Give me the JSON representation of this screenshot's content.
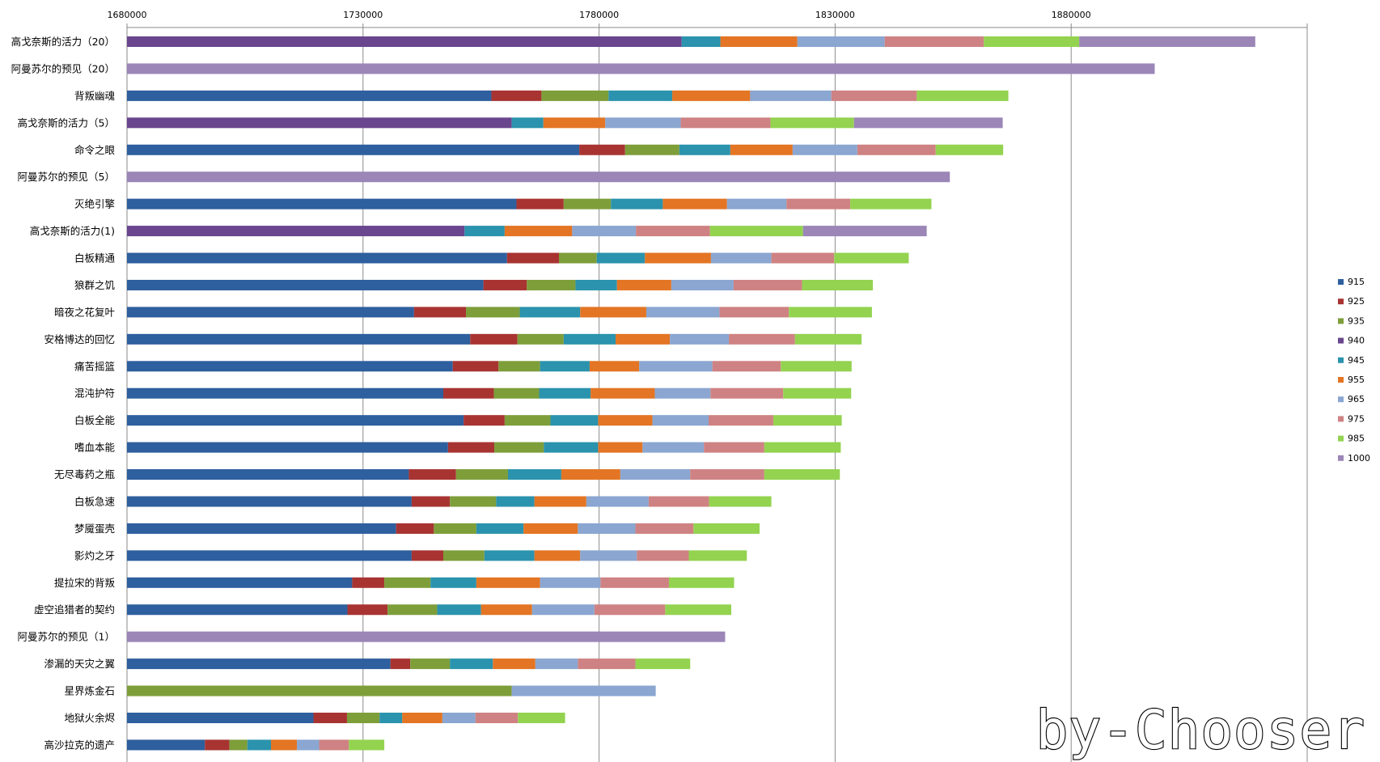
{
  "chart_data": {
    "type": "bar",
    "orientation": "horizontal",
    "stacked": true,
    "xlim": [
      1680000,
      1930000
    ],
    "x_ticks": [
      "1680000",
      "1730000",
      "1780000",
      "1830000",
      "1880000"
    ],
    "grid": "vertical",
    "legend_position": "right",
    "levels": [
      "915",
      "925",
      "935",
      "940",
      "945",
      "955",
      "965",
      "975",
      "985",
      "1000"
    ],
    "colors": {
      "915": "#2e5f9e",
      "925": "#a83432",
      "935": "#7e9e3a",
      "940": "#69468e",
      "945": "#2b93ad",
      "955": "#e37524",
      "965": "#8aa6d1",
      "975": "#cf8283",
      "985": "#93d350",
      "1000": "#9b86b7"
    },
    "categories": [
      {
        "label": "高戈奈斯的活力（20）",
        "segments": [
          [
            "940",
            1797500
          ],
          [
            "945",
            1805700
          ],
          [
            "955",
            1822000
          ],
          [
            "965",
            1840500
          ],
          [
            "975",
            1861500
          ],
          [
            "985",
            1881700
          ],
          [
            "1000",
            1919000
          ]
        ]
      },
      {
        "label": "阿曼苏尔的预见（20）",
        "segments": [
          [
            "1000",
            1897700
          ]
        ]
      },
      {
        "label": "背叛幽魂",
        "segments": [
          [
            "915",
            1757200
          ],
          [
            "925",
            1767800
          ],
          [
            "935",
            1782000
          ],
          [
            "945",
            1795500
          ],
          [
            "955",
            1812000
          ],
          [
            "965",
            1829200
          ],
          [
            "975",
            1847300
          ],
          [
            "985",
            1866700
          ]
        ]
      },
      {
        "label": "高戈奈斯的活力（5）",
        "segments": [
          [
            "940",
            1761500
          ],
          [
            "945",
            1768200
          ],
          [
            "955",
            1781300
          ],
          [
            "965",
            1797300
          ],
          [
            "975",
            1816300
          ],
          [
            "985",
            1834000
          ],
          [
            "1000",
            1865500
          ]
        ]
      },
      {
        "label": "命令之眼",
        "segments": [
          [
            "915",
            1775800
          ],
          [
            "925",
            1785500
          ],
          [
            "935",
            1797000
          ],
          [
            "945",
            1807800
          ],
          [
            "955",
            1821000
          ],
          [
            "965",
            1834700
          ],
          [
            "975",
            1851300
          ],
          [
            "985",
            1865600
          ]
        ]
      },
      {
        "label": "阿曼苏尔的预见（5）",
        "segments": [
          [
            "1000",
            1854300
          ]
        ]
      },
      {
        "label": "灭绝引擎",
        "segments": [
          [
            "915",
            1762500
          ],
          [
            "925",
            1772500
          ],
          [
            "935",
            1782500
          ],
          [
            "945",
            1793500
          ],
          [
            "955",
            1807100
          ],
          [
            "965",
            1819700
          ],
          [
            "975",
            1833200
          ],
          [
            "985",
            1850400
          ]
        ]
      },
      {
        "label": "高戈奈斯的活力(1)",
        "segments": [
          [
            "940",
            1751500
          ],
          [
            "945",
            1760000
          ],
          [
            "955",
            1774300
          ],
          [
            "965",
            1787800
          ],
          [
            "975",
            1803500
          ],
          [
            "985",
            1823200
          ],
          [
            "1000",
            1849400
          ]
        ]
      },
      {
        "label": "白板精通",
        "segments": [
          [
            "915",
            1760500
          ],
          [
            "925",
            1771500
          ],
          [
            "935",
            1779500
          ],
          [
            "945",
            1789700
          ],
          [
            "955",
            1803700
          ],
          [
            "965",
            1816500
          ],
          [
            "975",
            1829800
          ],
          [
            "985",
            1845600
          ]
        ]
      },
      {
        "label": "狼群之饥",
        "segments": [
          [
            "915",
            1755500
          ],
          [
            "925",
            1764700
          ],
          [
            "935",
            1775000
          ],
          [
            "945",
            1783800
          ],
          [
            "955",
            1795300
          ],
          [
            "965",
            1808500
          ],
          [
            "975",
            1823000
          ],
          [
            "985",
            1838000
          ]
        ]
      },
      {
        "label": "暗夜之花复叶",
        "segments": [
          [
            "915",
            1740800
          ],
          [
            "925",
            1751800
          ],
          [
            "935",
            1763200
          ],
          [
            "945",
            1776000
          ],
          [
            "955",
            1790000
          ],
          [
            "965",
            1805500
          ],
          [
            "975",
            1820200
          ],
          [
            "985",
            1837800
          ]
        ]
      },
      {
        "label": "安格博达的回忆",
        "segments": [
          [
            "915",
            1752700
          ],
          [
            "925",
            1762700
          ],
          [
            "935",
            1772500
          ],
          [
            "945",
            1783500
          ],
          [
            "955",
            1795000
          ],
          [
            "965",
            1807500
          ],
          [
            "975",
            1821500
          ],
          [
            "985",
            1835600
          ]
        ]
      },
      {
        "label": "痛苦摇篮",
        "segments": [
          [
            "915",
            1749000
          ],
          [
            "925",
            1758700
          ],
          [
            "935",
            1767500
          ],
          [
            "945",
            1778000
          ],
          [
            "955",
            1788500
          ],
          [
            "965",
            1804000
          ],
          [
            "975",
            1818500
          ],
          [
            "985",
            1833500
          ]
        ]
      },
      {
        "label": "混沌护符",
        "segments": [
          [
            "915",
            1747000
          ],
          [
            "925",
            1757700
          ],
          [
            "935",
            1767300
          ],
          [
            "945",
            1778200
          ],
          [
            "955",
            1791800
          ],
          [
            "965",
            1803600
          ],
          [
            "975",
            1819000
          ],
          [
            "985",
            1833400
          ]
        ]
      },
      {
        "label": "白板全能",
        "segments": [
          [
            "915",
            1751300
          ],
          [
            "925",
            1760000
          ],
          [
            "935",
            1769700
          ],
          [
            "945",
            1779800
          ],
          [
            "955",
            1791300
          ],
          [
            "965",
            1803200
          ],
          [
            "975",
            1816900
          ],
          [
            "985",
            1831400
          ]
        ]
      },
      {
        "label": "嗜血本能",
        "segments": [
          [
            "915",
            1748000
          ],
          [
            "925",
            1757800
          ],
          [
            "935",
            1768300
          ],
          [
            "945",
            1779800
          ],
          [
            "955",
            1789200
          ],
          [
            "965",
            1802200
          ],
          [
            "975",
            1815000
          ],
          [
            "985",
            1831200
          ]
        ]
      },
      {
        "label": "无尽毒药之瓶",
        "segments": [
          [
            "915",
            1739700
          ],
          [
            "925",
            1749700
          ],
          [
            "935",
            1760700
          ],
          [
            "945",
            1772000
          ],
          [
            "955",
            1784500
          ],
          [
            "965",
            1799300
          ],
          [
            "975",
            1815000
          ],
          [
            "985",
            1831000
          ]
        ]
      },
      {
        "label": "白板急速",
        "segments": [
          [
            "915",
            1740300
          ],
          [
            "925",
            1748400
          ],
          [
            "935",
            1758200
          ],
          [
            "945",
            1766300
          ],
          [
            "955",
            1777300
          ],
          [
            "965",
            1790500
          ],
          [
            "975",
            1803300
          ],
          [
            "985",
            1816500
          ]
        ]
      },
      {
        "label": "梦魇蛋壳",
        "segments": [
          [
            "915",
            1737000
          ],
          [
            "925",
            1745000
          ],
          [
            "935",
            1754000
          ],
          [
            "945",
            1764000
          ],
          [
            "955",
            1775500
          ],
          [
            "965",
            1787700
          ],
          [
            "975",
            1800000
          ],
          [
            "985",
            1814000
          ]
        ]
      },
      {
        "label": "影灼之牙",
        "segments": [
          [
            "915",
            1740300
          ],
          [
            "925",
            1747000
          ],
          [
            "935",
            1755700
          ],
          [
            "945",
            1766300
          ],
          [
            "955",
            1776000
          ],
          [
            "965",
            1788000
          ],
          [
            "975",
            1799000
          ],
          [
            "985",
            1811300
          ]
        ]
      },
      {
        "label": "提拉宋的背叛",
        "segments": [
          [
            "915",
            1727700
          ],
          [
            "925",
            1734500
          ],
          [
            "935",
            1744300
          ],
          [
            "945",
            1754000
          ],
          [
            "955",
            1767500
          ],
          [
            "965",
            1780300
          ],
          [
            "975",
            1794800
          ],
          [
            "985",
            1808600
          ]
        ]
      },
      {
        "label": "虚空追猎者的契约",
        "segments": [
          [
            "915",
            1726700
          ],
          [
            "925",
            1735200
          ],
          [
            "935",
            1745700
          ],
          [
            "945",
            1755000
          ],
          [
            "955",
            1765800
          ],
          [
            "965",
            1779000
          ],
          [
            "975",
            1794000
          ],
          [
            "985",
            1808000
          ]
        ]
      },
      {
        "label": "阿曼苏尔的预见（1）",
        "segments": [
          [
            "1000",
            1806700
          ]
        ]
      },
      {
        "label": "渗漏的天灾之翼",
        "segments": [
          [
            "915",
            1735800
          ],
          [
            "925",
            1740000
          ],
          [
            "935",
            1748400
          ],
          [
            "945",
            1757500
          ],
          [
            "955",
            1766500
          ],
          [
            "965",
            1775500
          ],
          [
            "975",
            1787700
          ],
          [
            "985",
            1799300
          ]
        ]
      },
      {
        "label": "星界炼金石",
        "segments": [
          [
            "935",
            1761500
          ],
          [
            "965",
            1792000
          ]
        ]
      },
      {
        "label": "地狱火余烬",
        "segments": [
          [
            "915",
            1719500
          ],
          [
            "925",
            1726600
          ],
          [
            "935",
            1733500
          ],
          [
            "945",
            1738300
          ],
          [
            "955",
            1746800
          ],
          [
            "965",
            1753800
          ],
          [
            "975",
            1762800
          ],
          [
            "985",
            1772800
          ]
        ]
      },
      {
        "label": "高沙拉克的遗产",
        "segments": [
          [
            "915",
            1696500
          ],
          [
            "925",
            1701700
          ],
          [
            "935",
            1705500
          ],
          [
            "945",
            1710500
          ],
          [
            "955",
            1716000
          ],
          [
            "965",
            1720700
          ],
          [
            "975",
            1727000
          ],
          [
            "985",
            1734500
          ]
        ]
      }
    ]
  },
  "watermark": "by-Chooser"
}
